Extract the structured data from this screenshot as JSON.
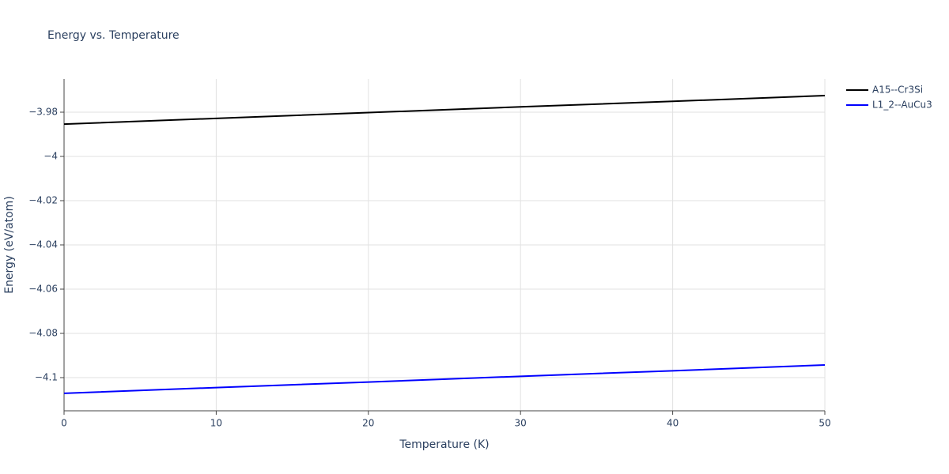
{
  "chart_data": {
    "type": "line",
    "title": "Energy vs. Temperature",
    "x_label": "Temperature (K)",
    "y_label": "Energy (eV/atom)",
    "x": [
      0,
      10,
      20,
      30,
      40,
      50
    ],
    "series": [
      {
        "name": "A15--Cr3Si",
        "color": "#000000",
        "values": [
          -3.9854,
          -3.9828,
          -3.9802,
          -3.9776,
          -3.9751,
          -3.9725
        ]
      },
      {
        "name": "L1_2--AuCu3",
        "color": "#0000ff",
        "values": [
          -4.1071,
          -4.1045,
          -4.102,
          -4.0994,
          -4.0969,
          -4.0943
        ]
      }
    ],
    "xlim": [
      0,
      50
    ],
    "xticks": [
      0,
      10,
      20,
      30,
      40,
      50
    ],
    "ylim": [
      -4.115,
      -3.965
    ],
    "yticks": [
      {
        "value": -4.1,
        "label": "−4.1"
      },
      {
        "value": -4.08,
        "label": "−4.08"
      },
      {
        "value": -4.06,
        "label": "−4.06"
      },
      {
        "value": -4.04,
        "label": "−4.04"
      },
      {
        "value": -4.02,
        "label": "−4.02"
      },
      {
        "value": -4,
        "label": "−4"
      },
      {
        "value": -3.98,
        "label": "−3.98"
      }
    ],
    "grid": true,
    "legend": "right"
  }
}
